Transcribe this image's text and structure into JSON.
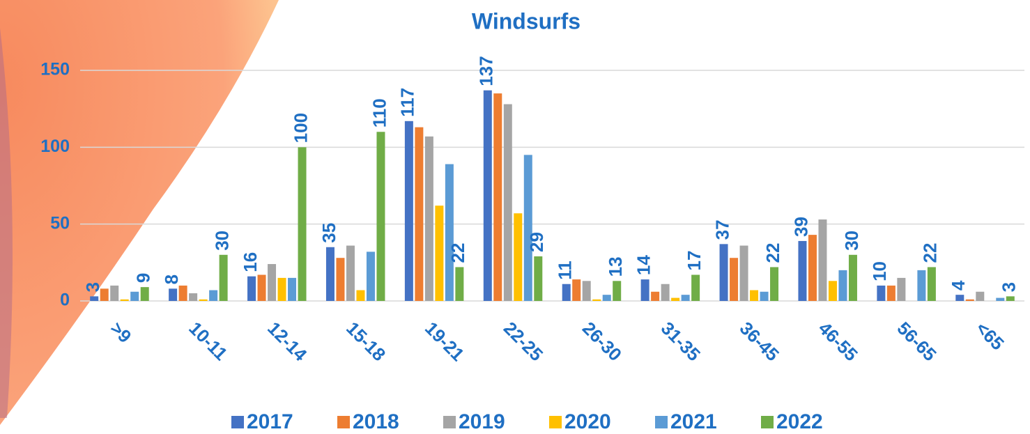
{
  "chart_data": {
    "type": "bar",
    "title": "Windsurfs",
    "categories": [
      ">9",
      "10-11",
      "12-14",
      "15-18",
      "19-21",
      "22-25",
      "26-30",
      "31-35",
      "36-45",
      "46-55",
      "56-65",
      "<65"
    ],
    "series": [
      {
        "name": "2017",
        "color": "#4472c4",
        "data_labels": true,
        "values": [
          3,
          8,
          16,
          35,
          117,
          137,
          11,
          14,
          37,
          39,
          10,
          4
        ]
      },
      {
        "name": "2018",
        "color": "#ed7d31",
        "data_labels": false,
        "values": [
          8,
          10,
          17,
          28,
          113,
          135,
          14,
          6,
          28,
          43,
          10,
          1
        ]
      },
      {
        "name": "2019",
        "color": "#a5a5a5",
        "data_labels": false,
        "values": [
          10,
          5,
          24,
          36,
          107,
          128,
          13,
          11,
          36,
          53,
          15,
          6
        ]
      },
      {
        "name": "2020",
        "color": "#ffc000",
        "data_labels": false,
        "values": [
          1,
          1,
          15,
          7,
          62,
          57,
          1,
          2,
          7,
          13,
          0,
          0
        ]
      },
      {
        "name": "2021",
        "color": "#5b9bd5",
        "data_labels": false,
        "values": [
          6,
          7,
          15,
          32,
          89,
          95,
          4,
          4,
          6,
          20,
          20,
          2
        ]
      },
      {
        "name": "2022",
        "color": "#70ad47",
        "data_labels": true,
        "values": [
          9,
          30,
          100,
          110,
          22,
          29,
          13,
          17,
          22,
          30,
          22,
          3
        ]
      }
    ],
    "ylim": [
      0,
      150
    ],
    "yticks": [
      0,
      50,
      100,
      150
    ],
    "grid": true
  }
}
